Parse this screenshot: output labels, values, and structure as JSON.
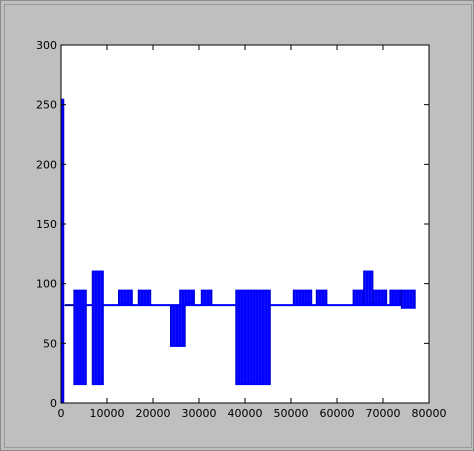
{
  "chart_data": {
    "type": "line",
    "title": "",
    "xlabel": "",
    "ylabel": "",
    "xlim": [
      0,
      80000
    ],
    "ylim": [
      0,
      300
    ],
    "grid": false,
    "x_ticks": [
      "0",
      "10000",
      "20000",
      "30000",
      "40000",
      "50000",
      "60000",
      "70000",
      "80000"
    ],
    "y_ticks": [
      "0",
      "50",
      "100",
      "150",
      "200",
      "250",
      "300"
    ],
    "series_color": "#0000ff",
    "series": [
      {
        "baseline": 82,
        "x_range": [
          0,
          77000
        ],
        "blocks": [
          {
            "x0": 0,
            "x1": 600,
            "ymin": 0,
            "ymax": 255
          },
          {
            "x0": 2800,
            "x1": 5500,
            "ymin": 15,
            "ymax": 95
          },
          {
            "x0": 6800,
            "x1": 9200,
            "ymin": 15,
            "ymax": 111
          },
          {
            "x0": 12500,
            "x1": 15500,
            "ymin": 82,
            "ymax": 95
          },
          {
            "x0": 16800,
            "x1": 19500,
            "ymin": 82,
            "ymax": 95
          },
          {
            "x0": 23800,
            "x1": 27000,
            "ymin": 47,
            "ymax": 82
          },
          {
            "x0": 25800,
            "x1": 29000,
            "ymin": 82,
            "ymax": 95
          },
          {
            "x0": 30500,
            "x1": 32800,
            "ymin": 82,
            "ymax": 95
          },
          {
            "x0": 38000,
            "x1": 45500,
            "ymin": 15,
            "ymax": 95
          },
          {
            "x0": 50500,
            "x1": 54500,
            "ymin": 82,
            "ymax": 95
          },
          {
            "x0": 55500,
            "x1": 57800,
            "ymin": 82,
            "ymax": 95
          },
          {
            "x0": 63500,
            "x1": 65800,
            "ymin": 82,
            "ymax": 95
          },
          {
            "x0": 65800,
            "x1": 67800,
            "ymin": 82,
            "ymax": 111
          },
          {
            "x0": 67800,
            "x1": 70800,
            "ymin": 82,
            "ymax": 95
          },
          {
            "x0": 71500,
            "x1": 73800,
            "ymin": 82,
            "ymax": 95
          },
          {
            "x0": 74000,
            "x1": 77000,
            "ymin": 79,
            "ymax": 95
          }
        ]
      }
    ]
  }
}
